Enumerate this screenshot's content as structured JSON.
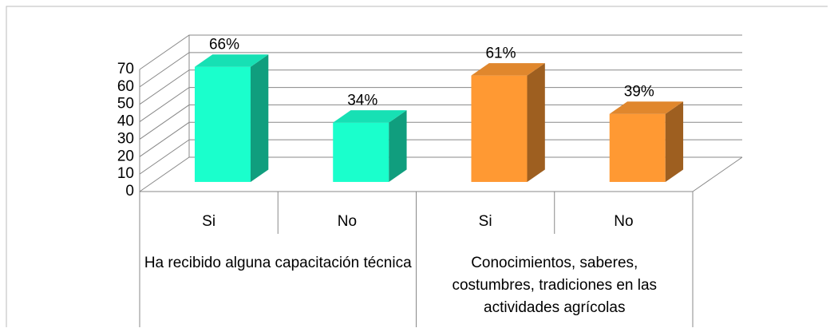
{
  "chart_data": {
    "type": "bar",
    "categories": [
      "Si",
      "No",
      "Si",
      "No"
    ],
    "groups": [
      "Ha recibido alguna capacitación técnica",
      "Conocimientos, saberes, costumbres, tradiciones en las actividades agrícolas"
    ],
    "values": [
      66,
      34,
      61,
      39
    ],
    "value_labels": [
      "66%",
      "34%",
      "61%",
      "39%"
    ],
    "colors": [
      "#1affcc",
      "#1affcc",
      "#ff9933",
      "#ff9933"
    ],
    "ylim": [
      0,
      70
    ],
    "yticks": [
      0,
      10,
      20,
      30,
      40,
      50,
      60,
      70
    ],
    "grid": true
  }
}
